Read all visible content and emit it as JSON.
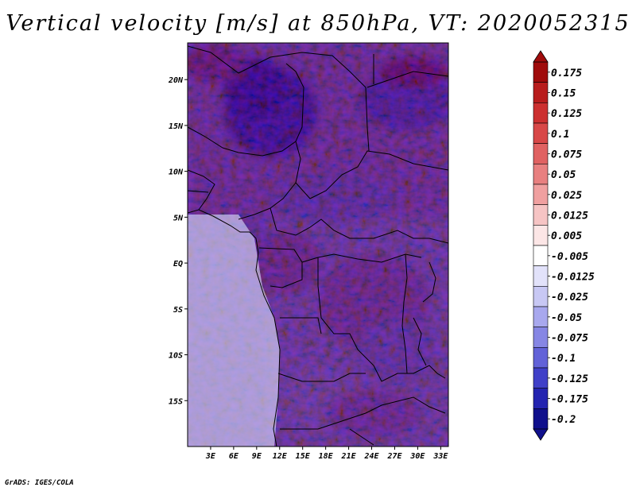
{
  "title": "Vertical velocity [m/s] at 850hPa, VT: 2020052315",
  "credit": "GrADS: IGES/COLA",
  "map": {
    "variable": "vertical velocity",
    "units": "m/s",
    "level": "850hPa",
    "valid_time": "2020052315",
    "lon_range": [
      0,
      34
    ],
    "lat_range": [
      -20,
      24
    ],
    "lat_ticks": [
      {
        "label": "20N",
        "value": 20
      },
      {
        "label": "15N",
        "value": 15
      },
      {
        "label": "10N",
        "value": 10
      },
      {
        "label": "5N",
        "value": 5
      },
      {
        "label": "EQ",
        "value": 0
      },
      {
        "label": "5S",
        "value": -5
      },
      {
        "label": "10S",
        "value": -10
      },
      {
        "label": "15S",
        "value": -15
      }
    ],
    "lon_ticks": [
      {
        "label": "3E",
        "value": 3
      },
      {
        "label": "6E",
        "value": 6
      },
      {
        "label": "9E",
        "value": 9
      },
      {
        "label": "12E",
        "value": 12
      },
      {
        "label": "15E",
        "value": 15
      },
      {
        "label": "18E",
        "value": 18
      },
      {
        "label": "21E",
        "value": 21
      },
      {
        "label": "24E",
        "value": 24
      },
      {
        "label": "27E",
        "value": 27
      },
      {
        "label": "30E",
        "value": 30
      },
      {
        "label": "33E",
        "value": 33
      }
    ]
  },
  "colorbar": {
    "labels": [
      "0.175",
      "0.15",
      "0.125",
      "0.1",
      "0.075",
      "0.05",
      "0.025",
      "0.0125",
      "0.005",
      "-0.005",
      "-0.0125",
      "-0.025",
      "-0.05",
      "-0.075",
      "-0.1",
      "-0.125",
      "-0.175",
      "-0.2"
    ],
    "colors": [
      "#a00c0c",
      "#b81d1d",
      "#cc3030",
      "#d84848",
      "#e06262",
      "#e88080",
      "#f0a0a0",
      "#f6c4c4",
      "#fce6e6",
      "#ffffff",
      "#e2e2fa",
      "#c8c8f4",
      "#a8a8ee",
      "#8686e4",
      "#6262d8",
      "#4040c8",
      "#2424b0",
      "#10108c"
    ]
  },
  "colors": {
    "positive": "#cc3030",
    "negative": "#2424b0",
    "border": "#000000"
  }
}
